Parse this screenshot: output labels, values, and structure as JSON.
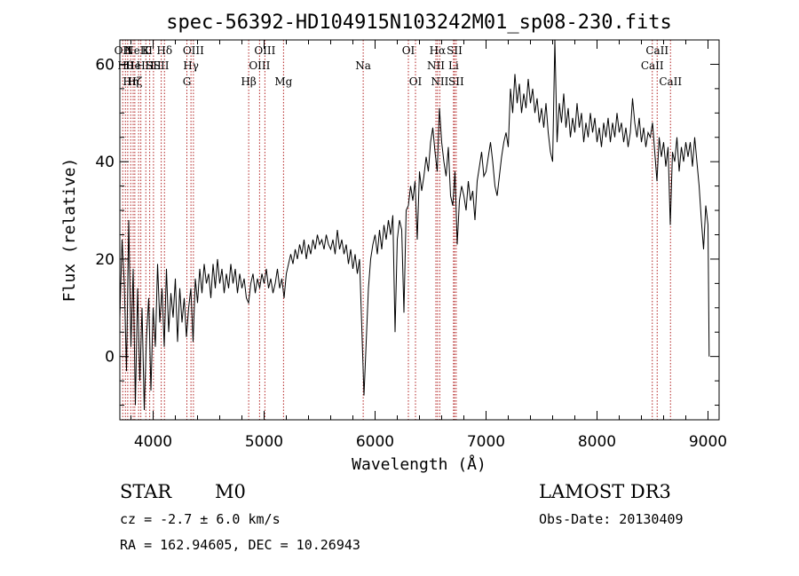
{
  "chart_data": {
    "type": "line",
    "title": "spec-56392-HD104915N103242M01_sp08-230.fits",
    "xlabel": "Wavelength (Å)",
    "ylabel": "Flux (relative)",
    "xlim": [
      3700,
      9100
    ],
    "ylim": [
      -13,
      65
    ],
    "x_ticks": [
      4000,
      5000,
      6000,
      7000,
      8000,
      9000
    ],
    "y_ticks": [
      0,
      20,
      40,
      60
    ],
    "grid": false,
    "series": [
      {
        "values": [
          [
            3700,
            8
          ],
          [
            3720,
            24
          ],
          [
            3740,
            15
          ],
          [
            3760,
            -3
          ],
          [
            3780,
            28
          ],
          [
            3800,
            2
          ],
          [
            3820,
            18
          ],
          [
            3840,
            -10
          ],
          [
            3860,
            14
          ],
          [
            3880,
            -5
          ],
          [
            3900,
            10
          ],
          [
            3920,
            -11
          ],
          [
            3940,
            4
          ],
          [
            3960,
            12
          ],
          [
            3980,
            -7
          ],
          [
            4000,
            10
          ],
          [
            4020,
            2
          ],
          [
            4040,
            19
          ],
          [
            4060,
            7
          ],
          [
            4080,
            14
          ],
          [
            4100,
            2
          ],
          [
            4120,
            18
          ],
          [
            4140,
            5
          ],
          [
            4160,
            13
          ],
          [
            4180,
            8
          ],
          [
            4200,
            16
          ],
          [
            4220,
            3
          ],
          [
            4240,
            14
          ],
          [
            4260,
            7
          ],
          [
            4280,
            12
          ],
          [
            4300,
            4
          ],
          [
            4320,
            10
          ],
          [
            4340,
            14
          ],
          [
            4360,
            3
          ],
          [
            4380,
            16
          ],
          [
            4400,
            11
          ],
          [
            4420,
            18
          ],
          [
            4440,
            13
          ],
          [
            4460,
            19
          ],
          [
            4480,
            15
          ],
          [
            4500,
            17
          ],
          [
            4520,
            12
          ],
          [
            4540,
            19
          ],
          [
            4560,
            14
          ],
          [
            4580,
            20
          ],
          [
            4600,
            15
          ],
          [
            4620,
            18
          ],
          [
            4640,
            13
          ],
          [
            4660,
            17
          ],
          [
            4680,
            14
          ],
          [
            4700,
            19
          ],
          [
            4720,
            15
          ],
          [
            4740,
            18
          ],
          [
            4760,
            13
          ],
          [
            4780,
            17
          ],
          [
            4800,
            14
          ],
          [
            4820,
            16
          ],
          [
            4840,
            12
          ],
          [
            4860,
            11
          ],
          [
            4880,
            15
          ],
          [
            4900,
            17
          ],
          [
            4920,
            13
          ],
          [
            4940,
            16
          ],
          [
            4960,
            14
          ],
          [
            4980,
            17
          ],
          [
            5000,
            15
          ],
          [
            5020,
            18
          ],
          [
            5040,
            14
          ],
          [
            5060,
            16
          ],
          [
            5080,
            13
          ],
          [
            5100,
            15
          ],
          [
            5120,
            18
          ],
          [
            5140,
            14
          ],
          [
            5160,
            16
          ],
          [
            5180,
            12
          ],
          [
            5200,
            17
          ],
          [
            5220,
            19
          ],
          [
            5240,
            21
          ],
          [
            5260,
            19
          ],
          [
            5280,
            22
          ],
          [
            5300,
            20
          ],
          [
            5320,
            23
          ],
          [
            5340,
            21
          ],
          [
            5360,
            24
          ],
          [
            5380,
            20
          ],
          [
            5400,
            23
          ],
          [
            5420,
            21
          ],
          [
            5440,
            24
          ],
          [
            5460,
            22
          ],
          [
            5480,
            25
          ],
          [
            5500,
            23
          ],
          [
            5520,
            24
          ],
          [
            5540,
            22
          ],
          [
            5560,
            25
          ],
          [
            5580,
            23
          ],
          [
            5600,
            22
          ],
          [
            5620,
            24
          ],
          [
            5640,
            21
          ],
          [
            5660,
            26
          ],
          [
            5680,
            22
          ],
          [
            5700,
            24
          ],
          [
            5720,
            21
          ],
          [
            5740,
            23
          ],
          [
            5760,
            19
          ],
          [
            5780,
            22
          ],
          [
            5800,
            18
          ],
          [
            5820,
            21
          ],
          [
            5840,
            17
          ],
          [
            5860,
            20
          ],
          [
            5880,
            6
          ],
          [
            5900,
            -8
          ],
          [
            5920,
            3
          ],
          [
            5940,
            14
          ],
          [
            5960,
            20
          ],
          [
            5980,
            23
          ],
          [
            6000,
            25
          ],
          [
            6020,
            21
          ],
          [
            6040,
            26
          ],
          [
            6060,
            22
          ],
          [
            6080,
            27
          ],
          [
            6100,
            24
          ],
          [
            6120,
            28
          ],
          [
            6140,
            25
          ],
          [
            6160,
            29
          ],
          [
            6180,
            5
          ],
          [
            6200,
            24
          ],
          [
            6220,
            28
          ],
          [
            6240,
            26
          ],
          [
            6260,
            9
          ],
          [
            6280,
            30
          ],
          [
            6300,
            31
          ],
          [
            6320,
            35
          ],
          [
            6340,
            32
          ],
          [
            6360,
            36
          ],
          [
            6380,
            24
          ],
          [
            6400,
            38
          ],
          [
            6420,
            34
          ],
          [
            6440,
            37
          ],
          [
            6460,
            41
          ],
          [
            6480,
            38
          ],
          [
            6500,
            44
          ],
          [
            6520,
            47
          ],
          [
            6540,
            42
          ],
          [
            6560,
            38
          ],
          [
            6580,
            51
          ],
          [
            6600,
            44
          ],
          [
            6620,
            40
          ],
          [
            6640,
            37
          ],
          [
            6660,
            43
          ],
          [
            6680,
            33
          ],
          [
            6700,
            31
          ],
          [
            6720,
            38
          ],
          [
            6740,
            23
          ],
          [
            6760,
            32
          ],
          [
            6780,
            35
          ],
          [
            6800,
            33
          ],
          [
            6820,
            30
          ],
          [
            6840,
            36
          ],
          [
            6860,
            32
          ],
          [
            6880,
            34
          ],
          [
            6900,
            28
          ],
          [
            6920,
            36
          ],
          [
            6940,
            39
          ],
          [
            6960,
            42
          ],
          [
            6980,
            37
          ],
          [
            7000,
            38
          ],
          [
            7020,
            41
          ],
          [
            7040,
            44
          ],
          [
            7060,
            40
          ],
          [
            7080,
            35
          ],
          [
            7100,
            33
          ],
          [
            7120,
            37
          ],
          [
            7140,
            41
          ],
          [
            7160,
            44
          ],
          [
            7180,
            46
          ],
          [
            7200,
            43
          ],
          [
            7220,
            55
          ],
          [
            7240,
            50
          ],
          [
            7260,
            58
          ],
          [
            7280,
            52
          ],
          [
            7300,
            56
          ],
          [
            7320,
            50
          ],
          [
            7340,
            54
          ],
          [
            7360,
            51
          ],
          [
            7380,
            57
          ],
          [
            7400,
            52
          ],
          [
            7420,
            55
          ],
          [
            7440,
            50
          ],
          [
            7460,
            53
          ],
          [
            7480,
            48
          ],
          [
            7500,
            51
          ],
          [
            7520,
            47
          ],
          [
            7540,
            52
          ],
          [
            7560,
            46
          ],
          [
            7580,
            42
          ],
          [
            7600,
            40
          ],
          [
            7620,
            65
          ],
          [
            7640,
            44
          ],
          [
            7660,
            52
          ],
          [
            7680,
            48
          ],
          [
            7700,
            54
          ],
          [
            7720,
            47
          ],
          [
            7740,
            51
          ],
          [
            7760,
            45
          ],
          [
            7780,
            49
          ],
          [
            7800,
            46
          ],
          [
            7820,
            52
          ],
          [
            7840,
            47
          ],
          [
            7860,
            50
          ],
          [
            7880,
            44
          ],
          [
            7900,
            48
          ],
          [
            7920,
            45
          ],
          [
            7940,
            50
          ],
          [
            7960,
            46
          ],
          [
            7980,
            49
          ],
          [
            8000,
            44
          ],
          [
            8020,
            47
          ],
          [
            8040,
            43
          ],
          [
            8060,
            48
          ],
          [
            8080,
            45
          ],
          [
            8100,
            49
          ],
          [
            8120,
            44
          ],
          [
            8140,
            48
          ],
          [
            8160,
            45
          ],
          [
            8180,
            50
          ],
          [
            8200,
            46
          ],
          [
            8220,
            48
          ],
          [
            8240,
            44
          ],
          [
            8260,
            47
          ],
          [
            8280,
            43
          ],
          [
            8300,
            46
          ],
          [
            8320,
            53
          ],
          [
            8340,
            48
          ],
          [
            8360,
            45
          ],
          [
            8380,
            49
          ],
          [
            8400,
            44
          ],
          [
            8420,
            47
          ],
          [
            8440,
            43
          ],
          [
            8460,
            46
          ],
          [
            8480,
            45
          ],
          [
            8500,
            48
          ],
          [
            8520,
            42
          ],
          [
            8540,
            36
          ],
          [
            8560,
            45
          ],
          [
            8580,
            41
          ],
          [
            8600,
            44
          ],
          [
            8620,
            39
          ],
          [
            8640,
            43
          ],
          [
            8660,
            27
          ],
          [
            8680,
            42
          ],
          [
            8700,
            40
          ],
          [
            8720,
            45
          ],
          [
            8740,
            38
          ],
          [
            8760,
            43
          ],
          [
            8780,
            40
          ],
          [
            8800,
            44
          ],
          [
            8820,
            41
          ],
          [
            8840,
            44
          ],
          [
            8860,
            39
          ],
          [
            8880,
            45
          ],
          [
            8900,
            40
          ],
          [
            8920,
            35
          ],
          [
            8940,
            28
          ],
          [
            8960,
            22
          ],
          [
            8980,
            31
          ],
          [
            9000,
            27
          ],
          [
            9010,
            0
          ]
        ]
      }
    ],
    "line_markers": [
      {
        "wl": 3726,
        "row": 1,
        "label": "OII"
      },
      {
        "wl": 3750,
        "row": 2,
        "label": "Hθ"
      },
      {
        "wl": 3771,
        "row": 1,
        "label": "H"
      },
      {
        "wl": 3798,
        "row": 3,
        "label": "Hη"
      },
      {
        "wl": 3820,
        "row": 2,
        "label": "He"
      },
      {
        "wl": 3835,
        "row": 3,
        "label": "Hζ"
      },
      {
        "wl": 3869,
        "row": 1,
        "label": "NeIII"
      },
      {
        "wl": 3889,
        "row": 2,
        "label": "H"
      },
      {
        "wl": 3934,
        "row": 1,
        "label": "K"
      },
      {
        "wl": 3969,
        "row": 2,
        "label": "H"
      },
      {
        "wl": 4003,
        "row": 2,
        "label": "SII"
      },
      {
        "wl": 4073,
        "row": 2,
        "label": "SII"
      },
      {
        "wl": 4102,
        "row": 1,
        "label": "Hδ"
      },
      {
        "wl": 4304,
        "row": 3,
        "label": "G"
      },
      {
        "wl": 4341,
        "row": 2,
        "label": "Hγ"
      },
      {
        "wl": 4363,
        "row": 1,
        "label": "OIII"
      },
      {
        "wl": 4861,
        "row": 3,
        "label": "Hβ"
      },
      {
        "wl": 4959,
        "row": 2,
        "label": "OIII"
      },
      {
        "wl": 5007,
        "row": 1,
        "label": "OIII"
      },
      {
        "wl": 5175,
        "row": 3,
        "label": "Mg"
      },
      {
        "wl": 5893,
        "row": 2,
        "label": "Na"
      },
      {
        "wl": 6300,
        "row": 1,
        "label": "OI"
      },
      {
        "wl": 6364,
        "row": 3,
        "label": "OI"
      },
      {
        "wl": 6548,
        "row": 2,
        "label": "NII"
      },
      {
        "wl": 6563,
        "row": 1,
        "label": "Hα"
      },
      {
        "wl": 6583,
        "row": 3,
        "label": "NII"
      },
      {
        "wl": 6707,
        "row": 2,
        "label": "Li"
      },
      {
        "wl": 6716,
        "row": 1,
        "label": "SII"
      },
      {
        "wl": 6731,
        "row": 3,
        "label": "SII"
      },
      {
        "wl": 8498,
        "row": 2,
        "label": "CaII"
      },
      {
        "wl": 8542,
        "row": 1,
        "label": "CaII"
      },
      {
        "wl": 8662,
        "row": 3,
        "label": "CaII"
      }
    ]
  },
  "info": {
    "object_class": "STAR",
    "subclass": "M0",
    "survey": "LAMOST DR3",
    "redshift": "cz = -2.7 ± 6.0 km/s",
    "obs_date": "Obs-Date: 20130409",
    "coords": "RA = 162.94605, DEC =  10.26943"
  },
  "colors": {
    "spectrum": "#000000",
    "line_markers": "#b22222",
    "axes": "#000000"
  }
}
